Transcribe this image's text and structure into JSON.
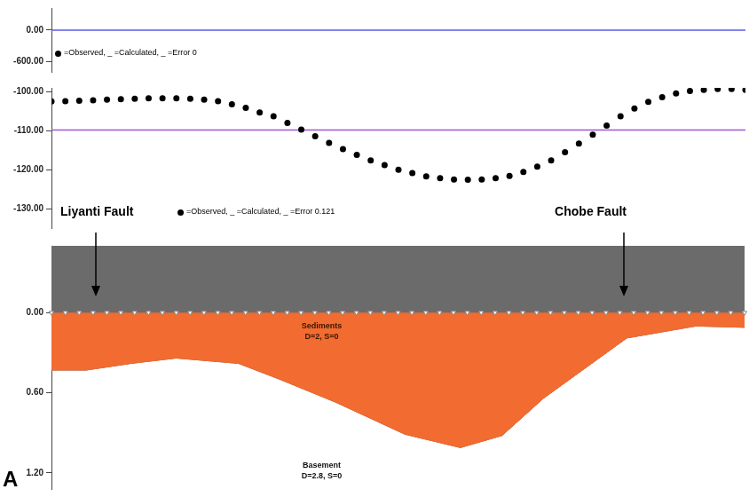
{
  "chart_data": [
    {
      "type": "line",
      "xlim": [
        0,
        100
      ],
      "ylim": [
        -790,
        420
      ],
      "yticks": [
        {
          "value": 0,
          "label": "0.00"
        },
        {
          "value": -600,
          "label": "-600.00"
        }
      ],
      "grid": false,
      "tick_labels": "y",
      "x": [
        0,
        100
      ],
      "series": [
        {
          "color": "#5a5ae6",
          "line_style": "solid",
          "marker": "none",
          "values": [
            0,
            0
          ]
        }
      ],
      "annotations": [
        {
          "text": "=Observed,  _ =Calculated,  _ =Error 0"
        }
      ]
    },
    {
      "type": "line",
      "xlim": [
        0,
        100
      ],
      "ylim": [
        -135,
        -99
      ],
      "yticks": [
        {
          "value": -100,
          "label": "-100.00"
        },
        {
          "value": -110,
          "label": "-110.00"
        },
        {
          "value": -120,
          "label": "-120.00"
        },
        {
          "value": -130,
          "label": "-130.00"
        }
      ],
      "grid": false,
      "tick_labels": "y",
      "x": [
        0,
        2,
        4,
        6,
        8,
        10,
        12,
        14,
        16,
        18,
        20,
        22,
        24,
        26,
        28,
        30,
        32,
        34,
        36,
        38,
        40,
        42,
        44,
        46,
        48,
        50,
        52,
        54,
        56,
        58,
        60,
        62,
        64,
        66,
        68,
        70,
        72,
        74,
        76,
        78,
        80,
        82,
        84,
        86,
        88,
        90,
        92,
        94,
        96,
        98,
        100
      ],
      "series": [
        {
          "color": "#000000",
          "line_style": "none",
          "marker": "circle",
          "values": [
            -102.5,
            -102.4,
            -102.3,
            -102.2,
            -102.0,
            -101.9,
            -101.8,
            -101.7,
            -101.7,
            -101.7,
            -101.8,
            -102.0,
            -102.4,
            -103.2,
            -104.1,
            -105.3,
            -106.3,
            -108.0,
            -109.7,
            -111.4,
            -113.1,
            -114.7,
            -116.2,
            -117.6,
            -118.8,
            -120.0,
            -120.9,
            -121.7,
            -122.2,
            -122.5,
            -122.6,
            -122.5,
            -122.2,
            -121.6,
            -120.6,
            -119.2,
            -117.6,
            -115.5,
            -113.3,
            -111.0,
            -108.7,
            -106.3,
            -104.3,
            -102.6,
            -101.4,
            -100.4,
            -99.8,
            -99.5,
            -99.3,
            -99.3,
            -99.5
          ]
        },
        {
          "color": "#9b59d0",
          "line_style": "solid",
          "marker": "none",
          "x": [
            0,
            100
          ],
          "values": [
            -109.8,
            -109.8
          ]
        }
      ],
      "annotations": [
        {
          "text": "=Observed,  _ =Calculated,  _ =Error 0.121"
        }
      ]
    },
    {
      "type": "area",
      "xlim": [
        0,
        100
      ],
      "ylim": [
        1.32,
        -0.5
      ],
      "yticks": [
        {
          "value": 0,
          "label": "0.00"
        },
        {
          "value": 0.6,
          "label": "0.60"
        },
        {
          "value": 1.2,
          "label": "1.20"
        }
      ],
      "grid": false,
      "tick_labels": "y",
      "marker": "triangle",
      "x": [
        0,
        5,
        11.5,
        18,
        27,
        33,
        41,
        51,
        59,
        65,
        71,
        83,
        93,
        100
      ],
      "values": [
        0.43,
        0.43,
        0.38,
        0.34,
        0.38,
        0.5,
        0.67,
        0.91,
        1.01,
        0.92,
        0.64,
        0.19,
        0.1,
        0.11
      ],
      "layers": [
        {
          "name": "Sediments",
          "label": "D=2, S=0",
          "color": "#f26b30"
        },
        {
          "name": "Basement",
          "label": "D=2.8, S=0",
          "color": "#6b6b6b"
        }
      ]
    }
  ],
  "annotations": [
    {
      "text": "Liyanti Fault"
    },
    {
      "text": "Chobe Fault"
    }
  ],
  "panel_label": "A"
}
